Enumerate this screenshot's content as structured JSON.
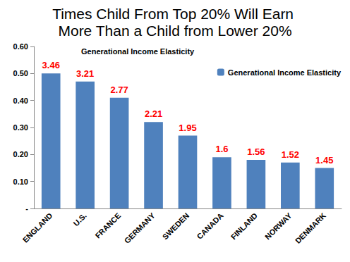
{
  "chart_data": {
    "type": "bar",
    "title": "Times Child From Top 20% Will Earn More Than a Child from Lower 20%",
    "subtitle": "Generational Income Elasticity",
    "categories": [
      "ENGLAND",
      "U.S.",
      "FRANCE",
      "GERMANY",
      "SWEDEN",
      "CANADA",
      "FINLAND",
      "NORWAY",
      "DENMARK"
    ],
    "series": [
      {
        "name": "Generational Income Elasticity",
        "color": "#4f81bd",
        "values": [
          0.5,
          0.47,
          0.41,
          0.32,
          0.27,
          0.19,
          0.18,
          0.17,
          0.15
        ]
      }
    ],
    "annotations": [
      3.46,
      3.21,
      2.77,
      2.21,
      1.95,
      1.6,
      1.56,
      1.52,
      1.45
    ],
    "ylim": [
      0,
      0.6
    ],
    "yticks": [
      {
        "value": 0,
        "label": "-"
      },
      {
        "value": 0.1,
        "label": "0.10"
      },
      {
        "value": 0.2,
        "label": "0.20"
      },
      {
        "value": 0.3,
        "label": "0.30"
      },
      {
        "value": 0.4,
        "label": "0.40"
      },
      {
        "value": 0.5,
        "label": "0.50"
      },
      {
        "value": 0.6,
        "label": "0.60"
      }
    ],
    "grid": false,
    "legend": "upper right"
  }
}
